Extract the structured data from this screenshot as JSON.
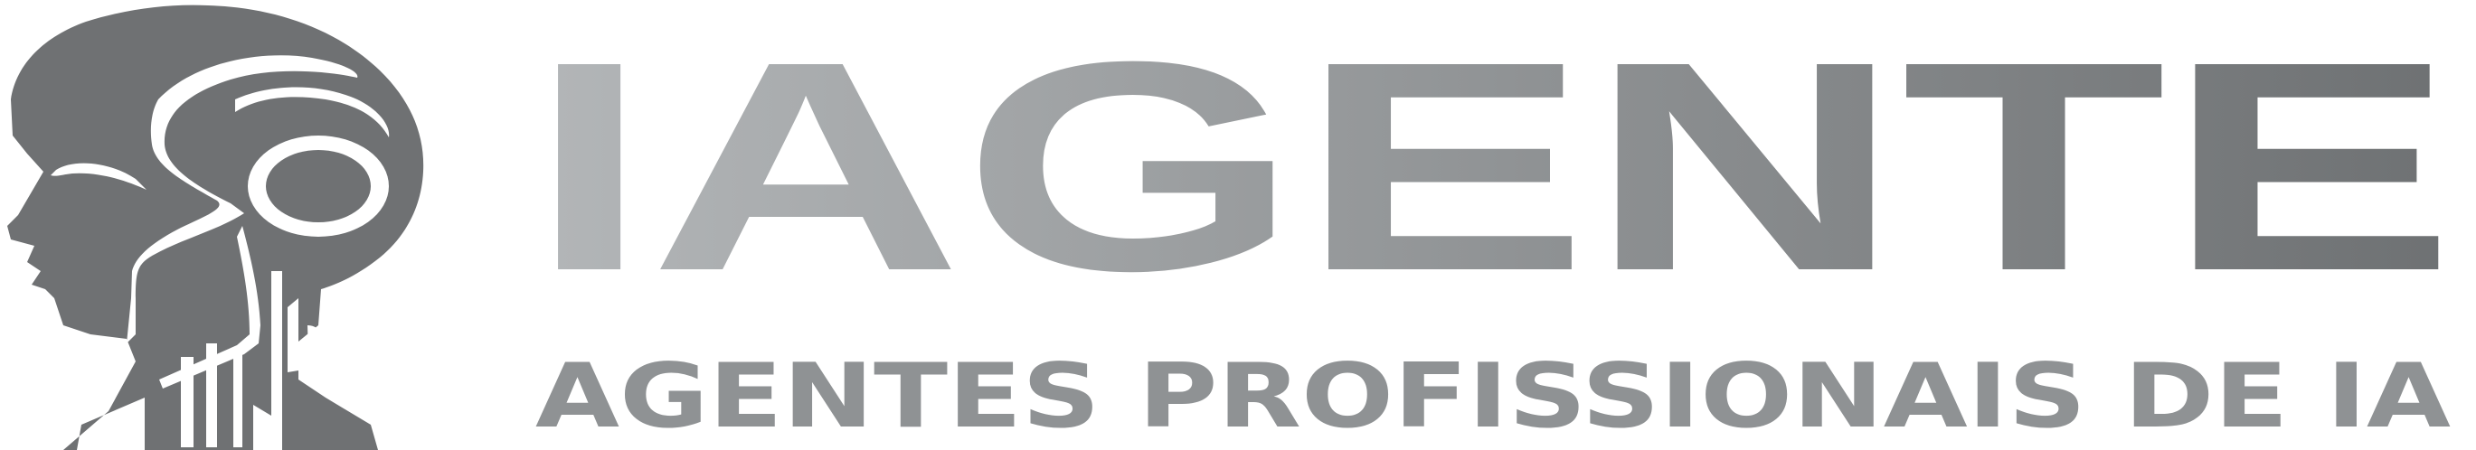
{
  "logo": {
    "wordmark": "IAGENTE",
    "tagline": "AGENTES PROFISSIONAIS DE IA",
    "emblem_description_icon": "robot-head-profile-icon"
  },
  "colors": {
    "background": "#ffffff",
    "emblem_gray": "#6f7173",
    "wordmark_light": "#b3b6b8",
    "wordmark_dark": "#6e7173",
    "tagline_gray": "#8f9294"
  }
}
